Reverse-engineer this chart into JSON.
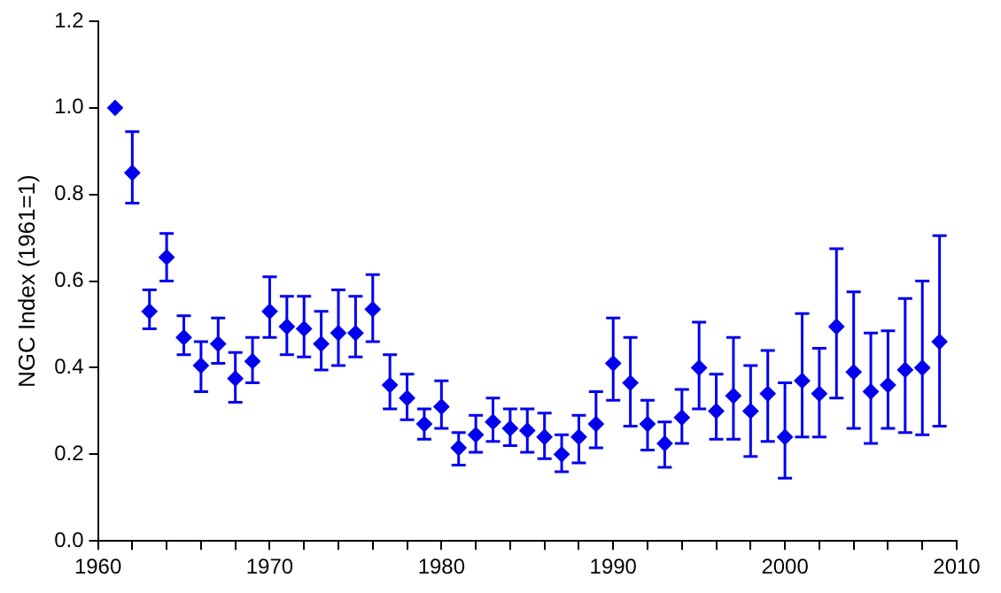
{
  "chart_data": {
    "type": "scatter",
    "ylabel": "NGC Index (1961=1)",
    "marker": "diamond",
    "grid": false,
    "legend": false,
    "x": [
      1961,
      1962,
      1963,
      1964,
      1965,
      1966,
      1967,
      1968,
      1969,
      1970,
      1971,
      1972,
      1973,
      1974,
      1975,
      1976,
      1977,
      1978,
      1979,
      1980,
      1981,
      1982,
      1983,
      1984,
      1985,
      1986,
      1987,
      1988,
      1989,
      1990,
      1991,
      1992,
      1993,
      1994,
      1995,
      1996,
      1997,
      1998,
      1999,
      2000,
      2001,
      2002,
      2003,
      2004,
      2005,
      2006,
      2007,
      2008,
      2009
    ],
    "series": [
      {
        "color": "#0000ee",
        "values": [
          1.0,
          0.85,
          0.53,
          0.655,
          0.47,
          0.405,
          0.455,
          0.375,
          0.415,
          0.53,
          0.495,
          0.49,
          0.455,
          0.48,
          0.48,
          0.535,
          0.36,
          0.33,
          0.27,
          0.31,
          0.215,
          0.245,
          0.275,
          0.26,
          0.255,
          0.24,
          0.2,
          0.24,
          0.27,
          0.41,
          0.365,
          0.27,
          0.225,
          0.285,
          0.4,
          0.3,
          0.335,
          0.3,
          0.34,
          0.24,
          0.37,
          0.34,
          0.495,
          0.39,
          0.345,
          0.36,
          0.395,
          0.4,
          0.46
        ],
        "errors": [
          null,
          [
            0.78,
            0.945
          ],
          [
            0.49,
            0.58
          ],
          [
            0.6,
            0.71
          ],
          [
            0.43,
            0.52
          ],
          [
            0.345,
            0.46
          ],
          [
            0.41,
            0.515
          ],
          [
            0.32,
            0.435
          ],
          [
            0.365,
            0.47
          ],
          [
            0.47,
            0.61
          ],
          [
            0.43,
            0.565
          ],
          [
            0.425,
            0.565
          ],
          [
            0.395,
            0.53
          ],
          [
            0.405,
            0.58
          ],
          [
            0.425,
            0.565
          ],
          [
            0.46,
            0.615
          ],
          [
            0.305,
            0.43
          ],
          [
            0.28,
            0.385
          ],
          [
            0.235,
            0.305
          ],
          [
            0.26,
            0.37
          ],
          [
            0.175,
            0.25
          ],
          [
            0.205,
            0.29
          ],
          [
            0.23,
            0.33
          ],
          [
            0.22,
            0.305
          ],
          [
            0.205,
            0.305
          ],
          [
            0.19,
            0.295
          ],
          [
            0.16,
            0.245
          ],
          [
            0.18,
            0.29
          ],
          [
            0.215,
            0.345
          ],
          [
            0.325,
            0.515
          ],
          [
            0.265,
            0.47
          ],
          [
            0.21,
            0.325
          ],
          [
            0.17,
            0.275
          ],
          [
            0.225,
            0.35
          ],
          [
            0.305,
            0.505
          ],
          [
            0.235,
            0.385
          ],
          [
            0.235,
            0.47
          ],
          [
            0.195,
            0.405
          ],
          [
            0.23,
            0.44
          ],
          [
            0.145,
            0.365
          ],
          [
            0.24,
            0.525
          ],
          [
            0.24,
            0.445
          ],
          [
            0.33,
            0.675
          ],
          [
            0.26,
            0.575
          ],
          [
            0.225,
            0.48
          ],
          [
            0.26,
            0.485
          ],
          [
            0.25,
            0.56
          ],
          [
            0.245,
            0.6
          ],
          [
            0.265,
            0.705
          ]
        ]
      }
    ],
    "xlim": [
      1960,
      2010
    ],
    "xticks": [
      1960,
      {
        "value": 1962,
        "label": null
      },
      {
        "value": 1964,
        "label": null
      },
      {
        "value": 1966,
        "label": null
      },
      {
        "value": 1968,
        "label": null
      },
      1970,
      {
        "value": 1972,
        "label": null
      },
      {
        "value": 1974,
        "label": null
      },
      {
        "value": 1976,
        "label": null
      },
      {
        "value": 1978,
        "label": null
      },
      1980,
      {
        "value": 1982,
        "label": null
      },
      {
        "value": 1984,
        "label": null
      },
      {
        "value": 1986,
        "label": null
      },
      {
        "value": 1988,
        "label": null
      },
      1990,
      {
        "value": 1992,
        "label": null
      },
      {
        "value": 1994,
        "label": null
      },
      {
        "value": 1996,
        "label": null
      },
      {
        "value": 1998,
        "label": null
      },
      2000,
      {
        "value": 2002,
        "label": null
      },
      {
        "value": 2004,
        "label": null
      },
      {
        "value": 2006,
        "label": null
      },
      {
        "value": 2008,
        "label": null
      },
      2010
    ],
    "ylim": [
      0,
      1.2
    ],
    "yticks": [
      {
        "value": 0,
        "label": "0.0"
      },
      {
        "value": 0.2,
        "label": "0.2"
      },
      {
        "value": 0.4,
        "label": "0.4"
      },
      {
        "value": 0.6,
        "label": "0.6"
      },
      {
        "value": 0.8,
        "label": "0.8"
      },
      {
        "value": 1,
        "label": "1.0"
      },
      {
        "value": 1.2,
        "label": "1.2"
      }
    ]
  }
}
